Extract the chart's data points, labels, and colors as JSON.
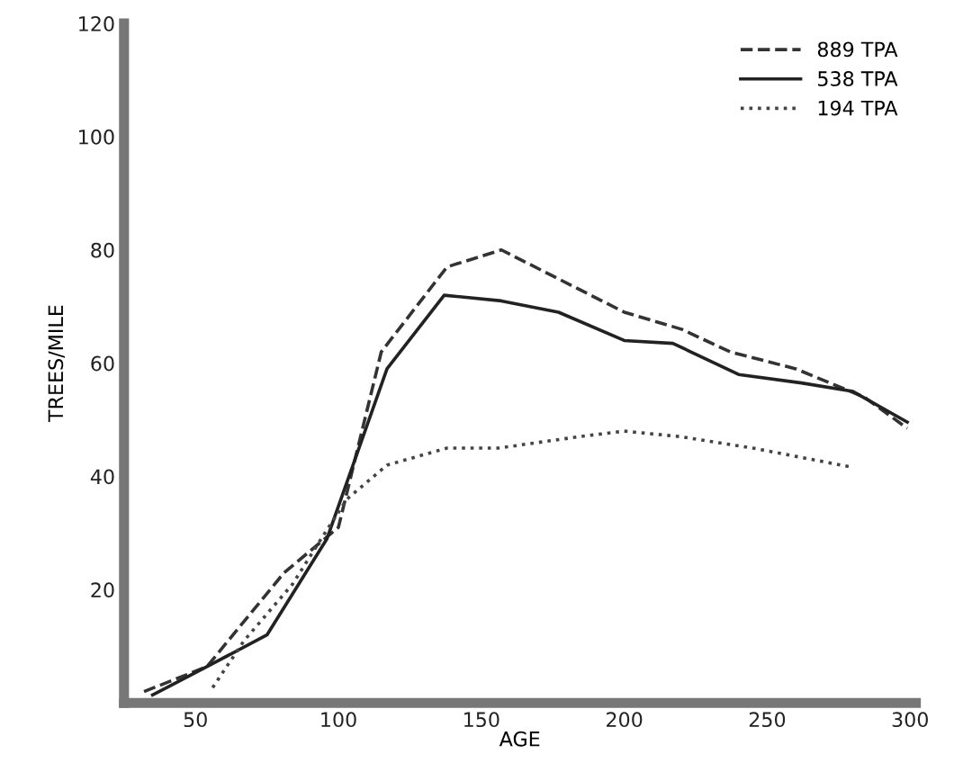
{
  "chart_data": {
    "type": "line",
    "xlabel": "AGE",
    "ylabel": "TREES/MILE",
    "xlim": [
      25,
      302
    ],
    "xticks": [
      50,
      100,
      150,
      200,
      250,
      300
    ],
    "ylim": [
      0,
      120
    ],
    "yticks": [
      20,
      40,
      60,
      80,
      100,
      120
    ],
    "grid": false,
    "legend": "top right",
    "marker": "none",
    "series": [
      {
        "name": "889 TPA",
        "color": "#333333",
        "line_style": "dashed",
        "x": [
          32,
          54,
          81,
          100,
          115,
          138,
          157,
          200,
          220,
          237,
          260,
          284,
          299
        ],
        "values": [
          2,
          6.4,
          23,
          31,
          62,
          77,
          80,
          69,
          66,
          62,
          59,
          54,
          48.5
        ]
      },
      {
        "name": "538 TPA",
        "color": "#222222",
        "line_style": "solid",
        "x": [
          35,
          54,
          75,
          96,
          117,
          137,
          157,
          177,
          200,
          217,
          240,
          262,
          280,
          299
        ],
        "values": [
          1.4,
          6.4,
          12,
          29,
          59,
          72,
          71,
          69,
          64,
          63.5,
          58,
          56.5,
          55,
          49.6
        ]
      },
      {
        "name": "194 TPA",
        "color": "#444444",
        "line_style": "dotted",
        "x": [
          56,
          67,
          84,
          94,
          103,
          117,
          138,
          156,
          184,
          200,
          220,
          245,
          280
        ],
        "values": [
          2.7,
          11,
          21,
          29,
          36,
          42,
          45,
          45,
          47,
          48,
          47,
          45,
          41.6
        ]
      }
    ]
  }
}
